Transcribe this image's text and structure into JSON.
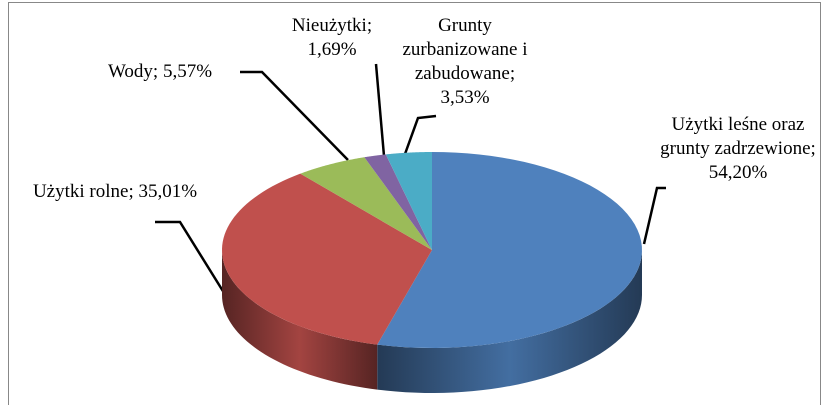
{
  "chart_data": {
    "type": "pie",
    "categories": [
      "Użytki leśne oraz grunty zadrzewione",
      "Użytki rolne",
      "Wody",
      "Nieużytki",
      "Grunty zurbanizowane i zabudowane"
    ],
    "values": [
      54.2,
      35.01,
      5.57,
      1.69,
      3.53
    ],
    "value_labels": [
      "54,20%",
      "35,01%",
      "5,57%",
      "1,69%",
      "3,53%"
    ],
    "label_separator": ";",
    "colors": [
      "#4f81bd",
      "#c0504d",
      "#9bbb59",
      "#8064a2",
      "#4bacc6"
    ],
    "three_d": true
  }
}
